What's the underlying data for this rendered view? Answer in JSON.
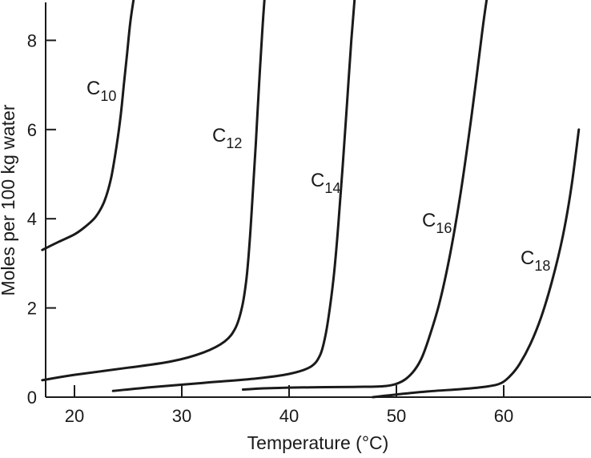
{
  "chart_data": {
    "type": "line",
    "xlabel": "Temperature (°C)",
    "ylabel": "Moles per 100 kg water",
    "xlim": [
      17,
      67.5
    ],
    "ylim": [
      0,
      9
    ],
    "xticks": [
      "20",
      "30",
      "40",
      "50",
      "60"
    ],
    "yticks": [
      "0",
      "2",
      "4",
      "6",
      "8"
    ],
    "grid": false,
    "series": [
      {
        "name": "C10",
        "label_base": "C",
        "label_sub": "10",
        "x": [
          17.0,
          18.5,
          20.0,
          21.0,
          22.0,
          22.8,
          23.4,
          23.9,
          24.3,
          24.6,
          24.9,
          25.2,
          25.5
        ],
        "y": [
          3.3,
          3.48,
          3.65,
          3.82,
          4.05,
          4.4,
          4.9,
          5.6,
          6.3,
          7.0,
          7.7,
          8.4,
          8.9
        ]
      },
      {
        "name": "C12",
        "label_base": "C",
        "label_sub": "12",
        "x": [
          17.0,
          20.0,
          25.0,
          29.0,
          32.0,
          34.0,
          35.0,
          35.6,
          36.0,
          36.3,
          36.6,
          36.9,
          37.2,
          37.5,
          37.7
        ],
        "y": [
          0.38,
          0.5,
          0.66,
          0.8,
          1.0,
          1.25,
          1.55,
          2.0,
          2.6,
          3.4,
          4.5,
          5.7,
          7.0,
          8.2,
          8.9
        ]
      },
      {
        "name": "C14",
        "label_base": "C",
        "label_sub": "14",
        "x": [
          23.6,
          27.0,
          32.0,
          37.0,
          40.0,
          42.0,
          42.9,
          43.4,
          43.8,
          44.2,
          44.6,
          45.0,
          45.4,
          45.8,
          46.1
        ],
        "y": [
          0.14,
          0.22,
          0.32,
          0.42,
          0.52,
          0.68,
          0.95,
          1.4,
          2.0,
          2.8,
          3.9,
          5.2,
          6.6,
          8.0,
          8.9
        ]
      },
      {
        "name": "C16",
        "label_base": "C",
        "label_sub": "16",
        "x": [
          35.7,
          38.0,
          42.0,
          46.0,
          49.0,
          50.5,
          51.5,
          52.3,
          53.0,
          54.0,
          55.0,
          56.0,
          57.0,
          58.0,
          58.4
        ],
        "y": [
          0.17,
          0.2,
          0.22,
          0.23,
          0.25,
          0.35,
          0.55,
          0.85,
          1.3,
          2.1,
          3.2,
          4.6,
          6.3,
          8.2,
          8.9
        ]
      },
      {
        "name": "C18",
        "label_base": "C",
        "label_sub": "18",
        "x": [
          47.8,
          50.0,
          53.0,
          56.0,
          58.5,
          59.8,
          60.7,
          61.5,
          62.5,
          63.5,
          64.5,
          65.5,
          66.3,
          67.0
        ],
        "y": [
          0.0,
          0.06,
          0.13,
          0.18,
          0.24,
          0.32,
          0.5,
          0.75,
          1.2,
          1.8,
          2.6,
          3.6,
          4.7,
          6.0
        ]
      }
    ]
  }
}
